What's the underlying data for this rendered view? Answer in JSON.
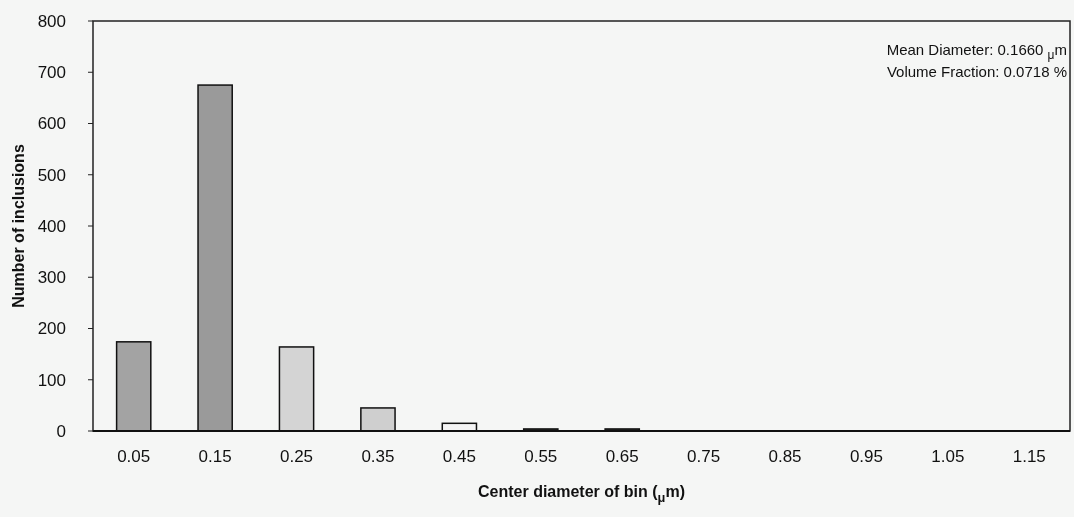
{
  "chart_data": {
    "type": "bar",
    "xlabel": "Center diameter of bin ($_{μ}$m)",
    "ylabel": "Number of inclusions",
    "categories": [
      "0.05",
      "0.15",
      "0.25",
      "0.35",
      "0.45",
      "0.55",
      "0.65",
      "0.75",
      "0.85",
      "0.95",
      "1.05",
      "1.15"
    ],
    "values": [
      174,
      675,
      164,
      45,
      15,
      4,
      4,
      0,
      0,
      0,
      0,
      0
    ],
    "colors": [
      "#a3a3a3",
      "#9a9a9a",
      "#d4d4d4",
      "#cfcfcf",
      "#f4f4f4",
      "#333333",
      "#333333",
      "#333333",
      "#333333",
      "#333333",
      "#333333",
      "#333333"
    ],
    "ylim": [
      0,
      800
    ],
    "yticks": [
      0,
      100,
      200,
      300,
      400,
      500,
      600,
      700,
      800
    ],
    "grid": false,
    "annotations": [
      "Mean Diameter:  0.1660 $_{μ}$m",
      "Volume Fraction: 0.0718 %"
    ]
  }
}
